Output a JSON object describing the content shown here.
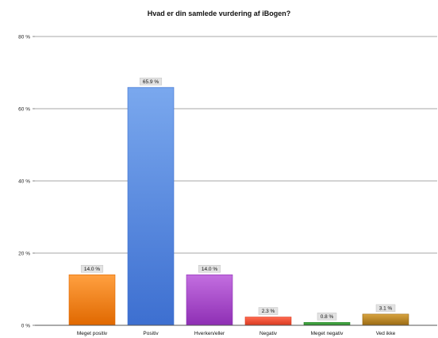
{
  "chart_data": {
    "type": "bar",
    "title": "Hvad er din samlede vurdering af iBogen?",
    "xlabel": "",
    "ylabel": "",
    "ylim": [
      0,
      80
    ],
    "yticks": [
      0,
      20,
      40,
      60,
      80
    ],
    "ytick_labels": [
      "0 %",
      "20 %",
      "40 %",
      "60 %",
      "80 %"
    ],
    "grid": true,
    "legend": "none",
    "categories": [
      "Meget positiv",
      "Positiv",
      "Hverken/eller",
      "Negativ",
      "Meget negativ",
      "Ved ikke"
    ],
    "values": [
      14.0,
      65.9,
      14.0,
      2.3,
      0.8,
      3.1
    ],
    "value_labels": [
      "14.0 %",
      "65.9 %",
      "14.0 %",
      "2.3 %",
      "0.8 %",
      "3.1 %"
    ],
    "colors": [
      [
        "#ffa040",
        "#e06800"
      ],
      [
        "#7aa8ee",
        "#3d6fd0"
      ],
      [
        "#c36ee0",
        "#8e2fb4"
      ],
      [
        "#ff6a50",
        "#d83a20"
      ],
      [
        "#55b855",
        "#1e7e1e"
      ],
      [
        "#d8a440",
        "#9a6a12"
      ]
    ]
  }
}
